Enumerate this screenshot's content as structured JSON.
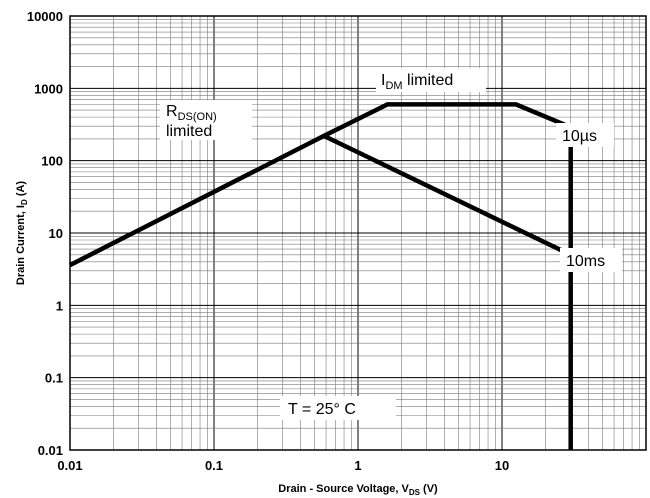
{
  "chart_data": {
    "type": "line",
    "x_scale": "log",
    "y_scale": "log",
    "xlim": [
      0.01,
      100
    ],
    "ylim": [
      0.01,
      10000
    ],
    "x_ticks": [
      {
        "value": 0.01,
        "label": "0.01"
      },
      {
        "value": 0.1,
        "label": "0.1"
      },
      {
        "value": 1,
        "label": "1"
      },
      {
        "value": 10,
        "label": "10"
      }
    ],
    "y_ticks": [
      {
        "value": 0.01,
        "label": "0.01"
      },
      {
        "value": 0.1,
        "label": "0.1"
      },
      {
        "value": 1,
        "label": "1"
      },
      {
        "value": 10,
        "label": "10"
      },
      {
        "value": 100,
        "label": "100"
      },
      {
        "value": 1000,
        "label": "1000"
      },
      {
        "value": 10000,
        "label": "10000"
      }
    ],
    "grid": true,
    "xlabel": {
      "main": "Drain - Source Voltage, V",
      "sub": "DS",
      "unit": " (V)"
    },
    "ylabel": {
      "main": "Drain Current, I",
      "sub": "D",
      "unit": " (A)"
    },
    "series": [
      {
        "name": "10µs",
        "points": [
          [
            0.01,
            3.6
          ],
          [
            0.58,
            220
          ],
          [
            1.6,
            600
          ],
          [
            12.5,
            600
          ],
          [
            30,
            290
          ],
          [
            30,
            0.01
          ]
        ]
      },
      {
        "name": "10ms",
        "points": [
          [
            0.58,
            220
          ],
          [
            30,
            5
          ]
        ]
      }
    ],
    "annotations": {
      "rds": {
        "main": "R",
        "sub": "DS(ON)",
        "line2": "limited"
      },
      "idm": {
        "main": "I",
        "sub": "DM",
        "tail": " limited"
      },
      "label_10us": "10µs",
      "label_10ms": "10ms",
      "temp": "T = 25°  C"
    }
  }
}
